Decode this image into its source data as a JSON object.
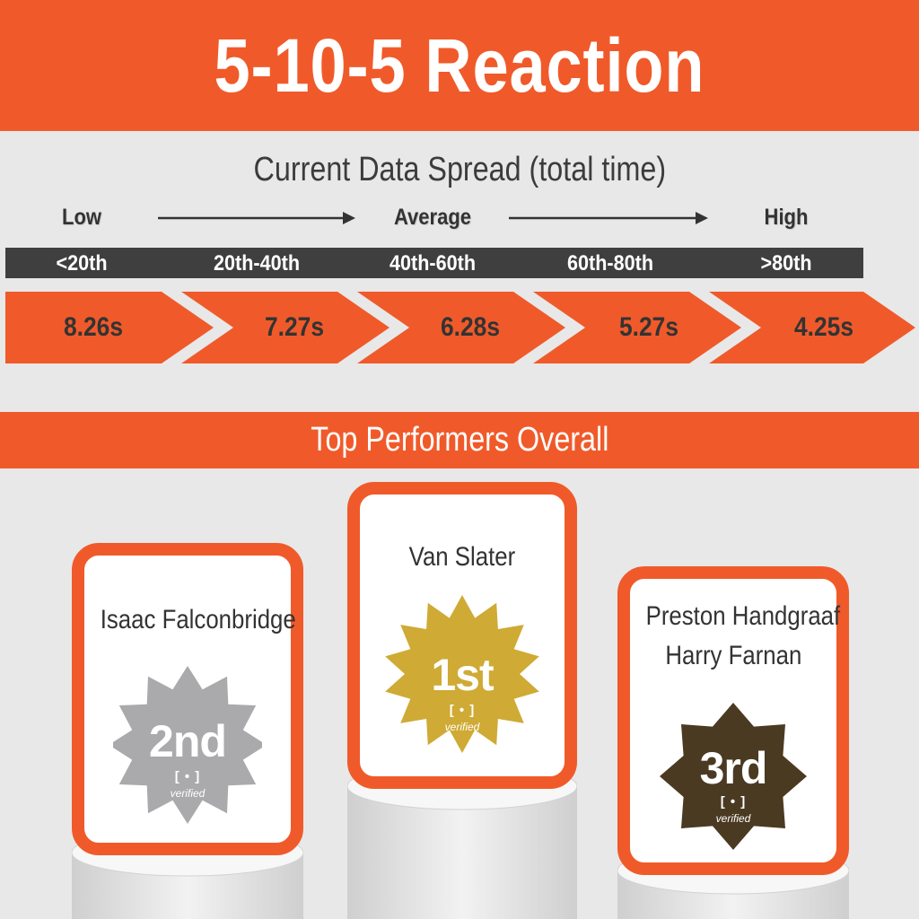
{
  "header": {
    "title": "5-10-5 Reaction"
  },
  "spread": {
    "title": "Current Data Spread  (total time)",
    "scale_labels": {
      "low": "Low",
      "average": "Average",
      "high": "High"
    },
    "percentiles": [
      "<20th",
      "20th-40th",
      "40th-60th",
      "60th-80th",
      ">80th"
    ],
    "values": [
      "8.26s",
      "7.27s",
      "6.28s",
      "5.27s",
      "4.25s"
    ]
  },
  "performers": {
    "title": "Top Performers Overall",
    "second": {
      "names": [
        "Isaac Falconbridge"
      ],
      "rank": "2nd",
      "verified": "verified",
      "badge_color": "#aaaaac"
    },
    "first": {
      "names": [
        "Van Slater"
      ],
      "rank": "1st",
      "verified": "verified",
      "badge_color": "#cfaa35"
    },
    "third": {
      "names": [
        "Preston Handgraaf",
        "Harry Farnan"
      ],
      "rank": "3rd",
      "verified": "verified",
      "badge_color": "#4b3a22"
    }
  },
  "colors": {
    "accent": "#f05a2a",
    "dark_bar": "#3f3f3f",
    "background": "#e8e8e8"
  }
}
